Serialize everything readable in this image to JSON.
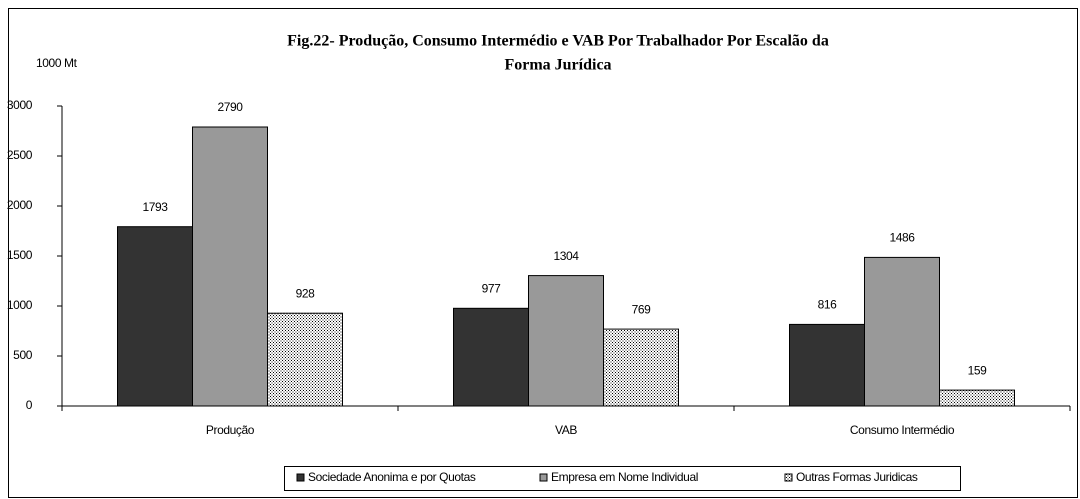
{
  "chart_data": {
    "type": "bar",
    "title": [
      "Fig.22- Produção, Consumo Intermédio e  VAB  Por  Trabalhador Por Escalão da",
      "Forma Jurídica"
    ],
    "y_label": "1000 Mt",
    "categories": [
      "Produção",
      "VAB",
      "Consumo Intermédio"
    ],
    "series": [
      {
        "name": "Sociedade Anonima e por Quotas",
        "color": "#333333",
        "values": [
          1793,
          977,
          816
        ]
      },
      {
        "name": "Empresa em Nome Individual",
        "color": "#999999",
        "values": [
          2790,
          1304,
          1486
        ]
      },
      {
        "name": "Outras Formas Juridicas",
        "color": "#ffffff",
        "pattern": "dots",
        "values": [
          928,
          769,
          159
        ]
      }
    ],
    "ylim": [
      0,
      3000
    ],
    "yticks": [
      0,
      500,
      1000,
      1500,
      2000,
      2500,
      3000
    ],
    "legend": "bottom",
    "grid": false
  }
}
